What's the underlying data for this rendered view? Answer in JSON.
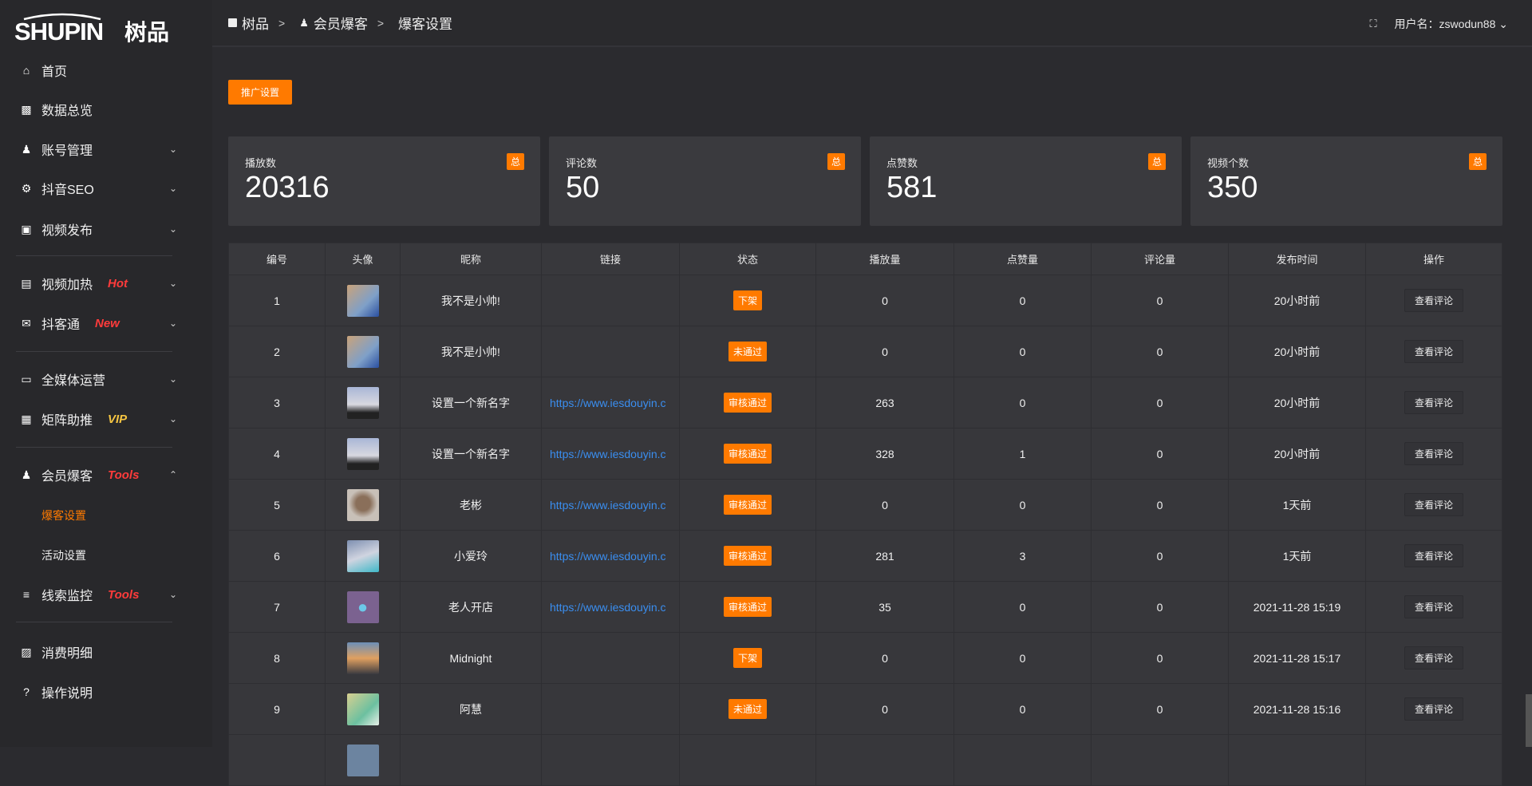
{
  "brand": {
    "logo_text": "SHUPIN",
    "logo_cn": "树品"
  },
  "breadcrumb": [
    {
      "label": "树品",
      "icon": "note-icon"
    },
    {
      "label": "会员爆客",
      "icon": "user-icon"
    },
    {
      "label": "爆客设置"
    }
  ],
  "breadcrumb_sep": ">",
  "header": {
    "fullscreen_icon": "fullscreen-icon",
    "user_label": "用户名：zswodun88"
  },
  "sidebar": {
    "items": [
      {
        "label": "首页",
        "icon": "home-icon"
      },
      {
        "label": "数据总览",
        "icon": "bar-chart-icon"
      },
      {
        "label": "账号管理",
        "icon": "user-icon",
        "chevron": "down"
      },
      {
        "label": "抖音SEO",
        "icon": "gear-icon",
        "chevron": "down"
      },
      {
        "label": "视频发布",
        "icon": "camera-icon",
        "chevron": "down"
      },
      {
        "label": "视频加热",
        "icon": "sign-icon",
        "tag": "Hot",
        "tag_color": "#ff3b3b",
        "chevron": "down"
      },
      {
        "label": "抖客通",
        "icon": "chat-icon",
        "tag": "New",
        "tag_color": "#ff3b3b",
        "chevron": "down"
      },
      {
        "label": "全媒体运营",
        "icon": "monitor-icon",
        "chevron": "down"
      },
      {
        "label": "矩阵助推",
        "icon": "grid-icon",
        "tag": "VIP",
        "tag_color": "#f5c542",
        "chevron": "down"
      },
      {
        "label": "会员爆客",
        "icon": "user-icon",
        "tag": "Tools",
        "tag_color": "#ff3b3b",
        "chevron": "up"
      },
      {
        "label": "线索监控",
        "icon": "sliders-icon",
        "tag": "Tools",
        "tag_color": "#ff3b3b",
        "chevron": "down"
      },
      {
        "label": "消费明细",
        "icon": "wallet-icon"
      },
      {
        "label": "操作说明",
        "icon": "help-icon"
      }
    ],
    "sub_items": [
      {
        "label": "爆客设置",
        "active": true
      },
      {
        "label": "活动设置"
      }
    ]
  },
  "main": {
    "promo_button": "推广设置",
    "cards": [
      {
        "title": "播放数",
        "value": "20316",
        "badge": "总"
      },
      {
        "title": "评论数",
        "value": "50",
        "badge": "总"
      },
      {
        "title": "点赞数",
        "value": "581",
        "badge": "总"
      },
      {
        "title": "视频个数",
        "value": "350",
        "badge": "总"
      }
    ],
    "table": {
      "columns": [
        "编号",
        "头像",
        "昵称",
        "链接",
        "状态",
        "播放量",
        "点赞量",
        "评论量",
        "发布时间",
        "操作"
      ],
      "rows": [
        {
          "id": "1",
          "nickname": "我不是小帅!",
          "link": "",
          "status": "下架",
          "plays": "0",
          "likes": "0",
          "comments": "0",
          "time": "20小时前",
          "action": "查看评论"
        },
        {
          "id": "2",
          "nickname": "我不是小帅!",
          "link": "",
          "status": "未通过",
          "plays": "0",
          "likes": "0",
          "comments": "0",
          "time": "20小时前",
          "action": "查看评论"
        },
        {
          "id": "3",
          "nickname": "设置一个新名字",
          "link": "https://www.iesdouyin.c",
          "status": "审核通过",
          "plays": "263",
          "likes": "0",
          "comments": "0",
          "time": "20小时前",
          "action": "查看评论"
        },
        {
          "id": "4",
          "nickname": "设置一个新名字",
          "link": "https://www.iesdouyin.c",
          "status": "审核通过",
          "plays": "328",
          "likes": "1",
          "comments": "0",
          "time": "20小时前",
          "action": "查看评论"
        },
        {
          "id": "5",
          "nickname": "老彬",
          "link": "https://www.iesdouyin.c",
          "status": "审核通过",
          "plays": "0",
          "likes": "0",
          "comments": "0",
          "time": "1天前",
          "action": "查看评论"
        },
        {
          "id": "6",
          "nickname": "小爱玲",
          "link": "https://www.iesdouyin.c",
          "status": "审核通过",
          "plays": "281",
          "likes": "3",
          "comments": "0",
          "time": "1天前",
          "action": "查看评论"
        },
        {
          "id": "7",
          "nickname": "老人开店",
          "link": "https://www.iesdouyin.c",
          "status": "审核通过",
          "plays": "35",
          "likes": "0",
          "comments": "0",
          "time": "2021-11-28 15:19",
          "action": "查看评论"
        },
        {
          "id": "8",
          "nickname": "Midnight",
          "link": "",
          "status": "下架",
          "plays": "0",
          "likes": "0",
          "comments": "0",
          "time": "2021-11-28 15:17",
          "action": "查看评论"
        },
        {
          "id": "9",
          "nickname": "阿慧",
          "link": "",
          "status": "未通过",
          "plays": "0",
          "likes": "0",
          "comments": "0",
          "time": "2021-11-28 15:16",
          "action": "查看评论"
        }
      ]
    }
  },
  "colors": {
    "accent": "#ff7a00",
    "link": "#3a8ef0",
    "bg": "#2b2b2f",
    "card": "#3a3a3e"
  }
}
